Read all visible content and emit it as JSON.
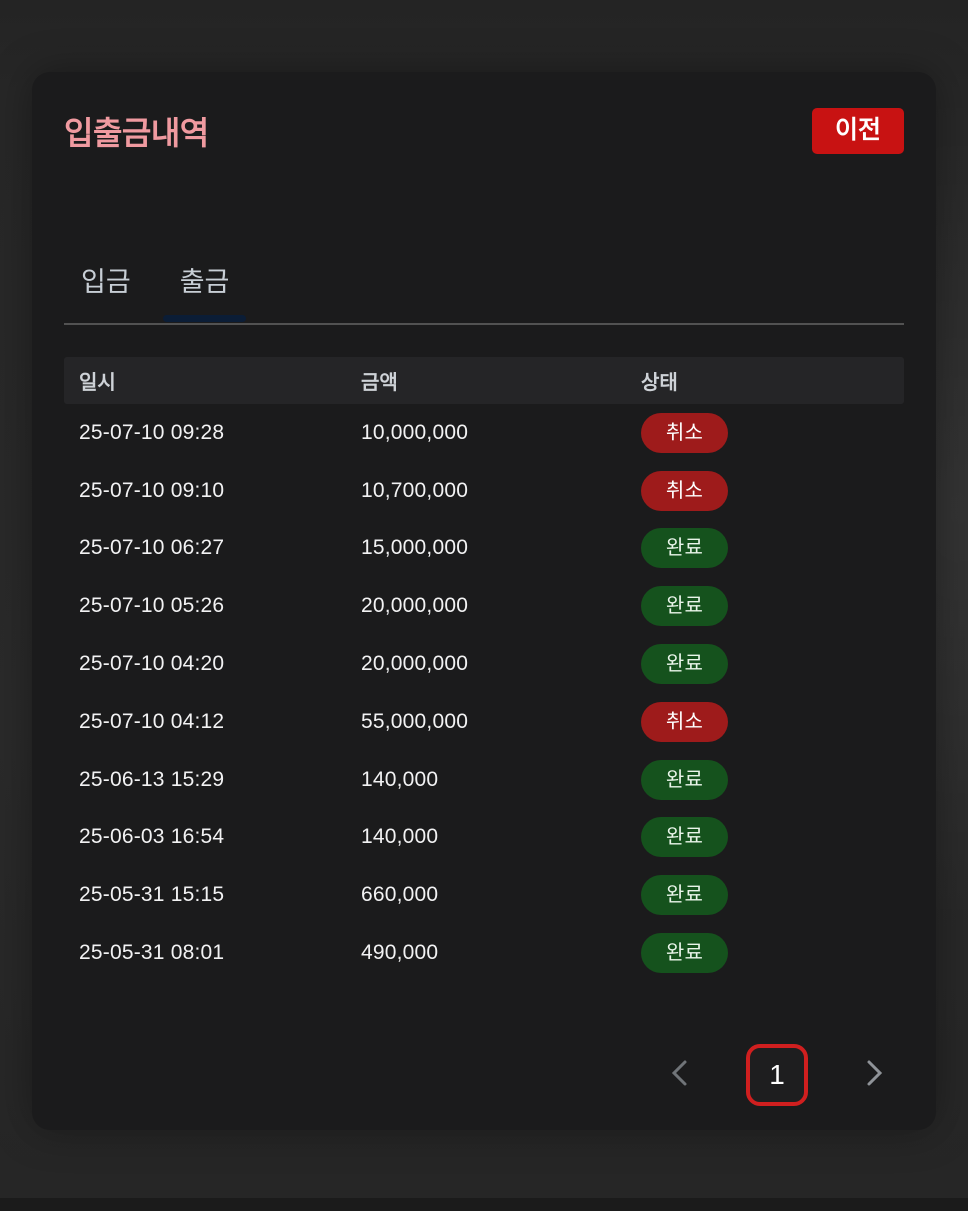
{
  "page": {
    "title": "입출금내역",
    "back_button_label": "이전"
  },
  "tabs": [
    {
      "label": "입금",
      "active": false
    },
    {
      "label": "출금",
      "active": true
    }
  ],
  "table": {
    "headers": {
      "datetime": "일시",
      "amount": "금액",
      "status": "상태"
    },
    "rows": [
      {
        "datetime": "25-07-10 09:28",
        "amount": "10,000,000",
        "status": "취소",
        "status_type": "canceled"
      },
      {
        "datetime": "25-07-10 09:10",
        "amount": "10,700,000",
        "status": "취소",
        "status_type": "canceled"
      },
      {
        "datetime": "25-07-10 06:27",
        "amount": "15,000,000",
        "status": "완료",
        "status_type": "completed"
      },
      {
        "datetime": "25-07-10 05:26",
        "amount": "20,000,000",
        "status": "완료",
        "status_type": "completed"
      },
      {
        "datetime": "25-07-10 04:20",
        "amount": "20,000,000",
        "status": "완료",
        "status_type": "completed"
      },
      {
        "datetime": "25-07-10 04:12",
        "amount": "55,000,000",
        "status": "취소",
        "status_type": "canceled"
      },
      {
        "datetime": "25-06-13 15:29",
        "amount": "140,000",
        "status": "완료",
        "status_type": "completed"
      },
      {
        "datetime": "25-06-03 16:54",
        "amount": "140,000",
        "status": "완료",
        "status_type": "completed"
      },
      {
        "datetime": "25-05-31 15:15",
        "amount": "660,000",
        "status": "완료",
        "status_type": "completed"
      },
      {
        "datetime": "25-05-31 08:01",
        "amount": "490,000",
        "status": "완료",
        "status_type": "completed"
      }
    ]
  },
  "pagination": {
    "current_page": "1"
  },
  "colors": {
    "title": "#f09aa0",
    "back_button_bg": "#c81212",
    "active_tab_indicator": "#0b1d36",
    "canceled_bg": "#9e1b1b",
    "completed_bg": "#15521d",
    "page_box_border": "#d01f1f"
  }
}
